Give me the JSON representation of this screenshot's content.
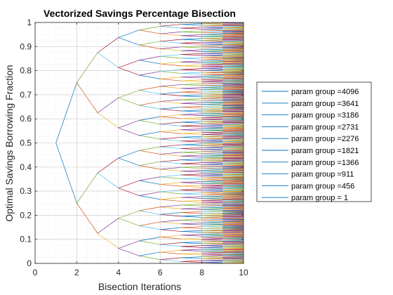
{
  "chart_data": {
    "type": "line",
    "title": "Vectorized Savings Percentage Bisection",
    "xlabel": "Bisection Iterations",
    "ylabel": "Optimal Savings Borrowing Fraction",
    "xlim": [
      0,
      10
    ],
    "ylim": [
      0,
      1
    ],
    "x_ticks": [
      "0",
      "2",
      "4",
      "6",
      "8",
      "10"
    ],
    "y_ticks": [
      "0",
      "0.1",
      "0.2",
      "0.3",
      "0.4",
      "0.5",
      "0.6",
      "0.7",
      "0.8",
      "0.9",
      "1"
    ],
    "grid": "on (major and minor, dotted)",
    "x": [
      1,
      2,
      3,
      4,
      5,
      6,
      7,
      8,
      9,
      10
    ],
    "start_value": 0.5,
    "bisection_step_halving": true,
    "legend_placement": "outside-right",
    "legend": [
      {
        "label": "param group =4096",
        "color": "#0072BD"
      },
      {
        "label": "param group =3641",
        "color": "#0072BD"
      },
      {
        "label": "param group =3186",
        "color": "#0072BD"
      },
      {
        "label": "param group =2731",
        "color": "#0072BD"
      },
      {
        "label": "param group =2276",
        "color": "#0072BD"
      },
      {
        "label": "param group =1821",
        "color": "#0072BD"
      },
      {
        "label": "param group =1366",
        "color": "#0072BD"
      },
      {
        "label": "param group =911",
        "color": "#0072BD"
      },
      {
        "label": "param group =456",
        "color": "#0072BD"
      },
      {
        "label": "param group =  1",
        "color": "#0072BD"
      }
    ],
    "line_colors": [
      "#0072BD",
      "#D95319",
      "#EDB120",
      "#7E2F8E",
      "#77AC30",
      "#4DBEEE",
      "#A2142F"
    ]
  }
}
